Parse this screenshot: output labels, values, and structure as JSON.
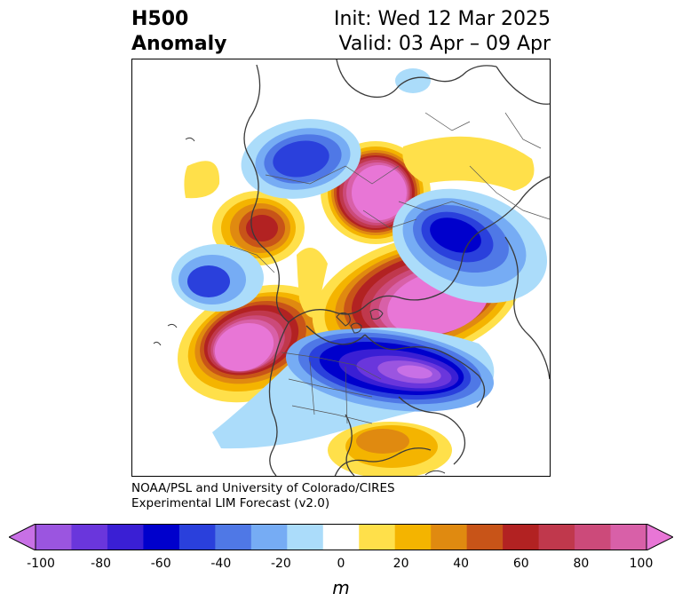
{
  "title": {
    "left_line1": "H500",
    "left_line2": "Anomaly",
    "right_line1": "Init: Wed 12 Mar 2025",
    "right_line2": "Valid: 03 Apr – 09 Apr"
  },
  "credit": {
    "line1": "NOAA/PSL and University of Colorado/CIRES",
    "line2": "Experimental LIM Forecast (v2.0)"
  },
  "colorbar": {
    "units": "m",
    "tick_labels": [
      "-100",
      "-80",
      "-60",
      "-40",
      "-20",
      "0",
      "20",
      "40",
      "60",
      "80",
      "100"
    ],
    "colors": [
      "#c870e6",
      "#9b55e0",
      "#6a36dc",
      "#3a1fd4",
      "#0000cc",
      "#2a40dc",
      "#4f78e6",
      "#76acf4",
      "#abdcfa",
      "#ffffff",
      "#ffe04a",
      "#f4b400",
      "#e08a10",
      "#c85418",
      "#b22222",
      "#c0384c",
      "#cc4a7a",
      "#d860a8",
      "#e876d6"
    ]
  },
  "icons": {
    "map": "polar-stereographic-map",
    "colorbar-extend-left": "triangle-left-icon",
    "colorbar-extend-right": "triangle-right-icon"
  }
}
